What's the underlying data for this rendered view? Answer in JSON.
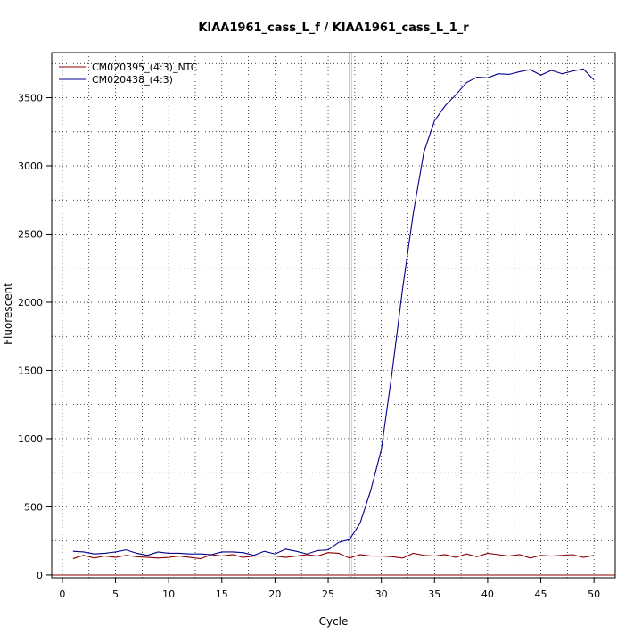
{
  "chart_data": {
    "type": "line",
    "title": "KIAA1961_cass_L_f / KIAA1961_cass_L_1_r",
    "xlabel": "Cycle",
    "ylabel": "Fluorescent",
    "xlim": [
      -1,
      52
    ],
    "ylim": [
      -20,
      3830
    ],
    "x_ticks": [
      0,
      5,
      10,
      15,
      20,
      25,
      30,
      35,
      40,
      45,
      50
    ],
    "y_ticks": [
      0,
      500,
      1000,
      1500,
      2000,
      2500,
      3000,
      3500
    ],
    "grid": true,
    "legend_position": "top-left",
    "threshold_cycle": 27,
    "threshold_color": "#00e5ee",
    "x": [
      1,
      2,
      3,
      4,
      5,
      6,
      7,
      8,
      9,
      10,
      11,
      12,
      13,
      14,
      15,
      16,
      17,
      18,
      19,
      20,
      21,
      22,
      23,
      24,
      25,
      26,
      27,
      28,
      29,
      30,
      31,
      32,
      33,
      34,
      35,
      36,
      37,
      38,
      39,
      40,
      41,
      42,
      43,
      44,
      45,
      46,
      47,
      48,
      49,
      50
    ],
    "series": [
      {
        "name": "CM020395_(4:3)_NTC",
        "color": "#8b0000",
        "values": [
          120,
          145,
          125,
          140,
          130,
          145,
          135,
          130,
          125,
          130,
          140,
          130,
          120,
          150,
          140,
          150,
          130,
          140,
          140,
          140,
          130,
          140,
          150,
          140,
          165,
          160,
          125,
          150,
          140,
          140,
          135,
          125,
          160,
          145,
          140,
          150,
          130,
          155,
          135,
          160,
          150,
          140,
          150,
          125,
          145,
          140,
          145,
          150,
          130,
          145
        ]
      },
      {
        "name": "CM020438_(4:3)",
        "color": "#00008b",
        "values": [
          175,
          170,
          155,
          160,
          170,
          185,
          160,
          145,
          170,
          160,
          160,
          155,
          155,
          150,
          170,
          170,
          165,
          145,
          175,
          155,
          190,
          175,
          155,
          180,
          185,
          240,
          260,
          380,
          620,
          920,
          1480,
          2100,
          2650,
          3100,
          3330,
          3440,
          3520,
          3610,
          3650,
          3645,
          3675,
          3670,
          3690,
          3705,
          3665,
          3700,
          3675,
          3695,
          3710,
          3630
        ]
      }
    ]
  }
}
